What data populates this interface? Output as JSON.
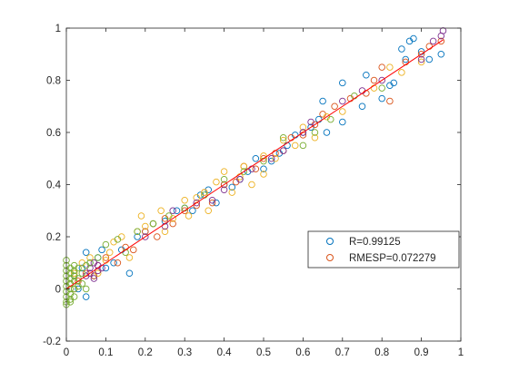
{
  "chart_data": {
    "type": "scatter",
    "title": "",
    "xlabel": "",
    "ylabel": "",
    "xlim": [
      0,
      1
    ],
    "ylim": [
      -0.2,
      1
    ],
    "grid": false,
    "legend_placement": "lower-right",
    "x_ticks": [
      "0",
      "0.1",
      "0.2",
      "0.3",
      "0.4",
      "0.5",
      "0.6",
      "0.7",
      "0.8",
      "0.9",
      "1"
    ],
    "y_ticks": [
      "-0.2",
      "0",
      "0.2",
      "0.4",
      "0.6",
      "0.8",
      "1"
    ],
    "colors": {
      "blue": "#0072BD",
      "orange": "#D95319",
      "yellow": "#EDB120",
      "purple": "#7E2F8E",
      "green": "#77AC30",
      "fit_line": "#FF0000"
    },
    "legend": [
      {
        "label": "R=0.99125",
        "color": "#0072BD"
      },
      {
        "label": "RMESP=0.072279",
        "color": "#D95319"
      }
    ],
    "fit_line": {
      "x": [
        0,
        0.955
      ],
      "y": [
        0,
        0.955
      ]
    },
    "series": [
      {
        "color": "#0072BD",
        "x": [
          0.01,
          0.02,
          0.03,
          0.04,
          0.05,
          0.05,
          0.06,
          0.07,
          0.08,
          0.09,
          0.1,
          0.12,
          0.14,
          0.16,
          0.18,
          0.2,
          0.22,
          0.25,
          0.28,
          0.3,
          0.32,
          0.34,
          0.36,
          0.38,
          0.4,
          0.42,
          0.44,
          0.46,
          0.48,
          0.5,
          0.52,
          0.54,
          0.56,
          0.58,
          0.6,
          0.62,
          0.64,
          0.65,
          0.66,
          0.7,
          0.7,
          0.75,
          0.76,
          0.8,
          0.82,
          0.83,
          0.85,
          0.86,
          0.87,
          0.88,
          0.9,
          0.92,
          0.95
        ],
        "y": [
          0.02,
          0.05,
          0.0,
          0.08,
          0.14,
          -0.03,
          0.1,
          0.05,
          0.12,
          0.15,
          0.08,
          0.1,
          0.15,
          0.06,
          0.2,
          0.22,
          0.25,
          0.26,
          0.3,
          0.31,
          0.3,
          0.36,
          0.38,
          0.33,
          0.4,
          0.39,
          0.42,
          0.45,
          0.5,
          0.46,
          0.49,
          0.52,
          0.55,
          0.59,
          0.6,
          0.62,
          0.65,
          0.72,
          0.6,
          0.64,
          0.79,
          0.7,
          0.82,
          0.73,
          0.78,
          0.79,
          0.92,
          0.88,
          0.95,
          0.96,
          0.91,
          0.88,
          0.9
        ]
      },
      {
        "color": "#D95319",
        "x": [
          0.02,
          0.03,
          0.05,
          0.07,
          0.08,
          0.1,
          0.13,
          0.15,
          0.17,
          0.2,
          0.23,
          0.25,
          0.27,
          0.3,
          0.33,
          0.35,
          0.37,
          0.4,
          0.43,
          0.45,
          0.48,
          0.5,
          0.53,
          0.55,
          0.57,
          0.6,
          0.63,
          0.65,
          0.68,
          0.72,
          0.76,
          0.78,
          0.8,
          0.82,
          0.86,
          0.9,
          0.92,
          0.95
        ],
        "y": [
          0.0,
          0.03,
          0.06,
          0.05,
          0.09,
          0.12,
          0.1,
          0.16,
          0.15,
          0.22,
          0.2,
          0.27,
          0.25,
          0.3,
          0.32,
          0.37,
          0.33,
          0.4,
          0.41,
          0.47,
          0.46,
          0.5,
          0.52,
          0.53,
          0.58,
          0.59,
          0.63,
          0.67,
          0.7,
          0.73,
          0.75,
          0.8,
          0.85,
          0.72,
          0.87,
          0.9,
          0.93,
          0.95
        ]
      },
      {
        "color": "#EDB120",
        "x": [
          0.01,
          0.02,
          0.04,
          0.06,
          0.08,
          0.1,
          0.11,
          0.12,
          0.14,
          0.16,
          0.18,
          0.19,
          0.2,
          0.22,
          0.24,
          0.25,
          0.27,
          0.3,
          0.31,
          0.33,
          0.35,
          0.36,
          0.38,
          0.4,
          0.42,
          0.44,
          0.45,
          0.47,
          0.5,
          0.5,
          0.53,
          0.55,
          0.58,
          0.6,
          0.63,
          0.66,
          0.7,
          0.78,
          0.82,
          0.85,
          0.9
        ],
        "y": [
          0.02,
          0.06,
          0.1,
          0.12,
          0.06,
          0.11,
          0.14,
          0.18,
          0.2,
          0.12,
          0.22,
          0.28,
          0.24,
          0.25,
          0.3,
          0.22,
          0.27,
          0.34,
          0.28,
          0.35,
          0.37,
          0.3,
          0.41,
          0.45,
          0.37,
          0.43,
          0.47,
          0.4,
          0.51,
          0.44,
          0.5,
          0.57,
          0.55,
          0.62,
          0.58,
          0.66,
          0.68,
          0.77,
          0.85,
          0.83,
          0.87
        ]
      },
      {
        "color": "#7E2F8E",
        "x": [
          0.05,
          0.06,
          0.06,
          0.07,
          0.07,
          0.08,
          0.08,
          0.09,
          0.2,
          0.25,
          0.27,
          0.33,
          0.37,
          0.4,
          0.44,
          0.47,
          0.52,
          0.55,
          0.6,
          0.62,
          0.7,
          0.75,
          0.8,
          0.9,
          0.93,
          0.95,
          0.955
        ],
        "y": [
          0.05,
          0.06,
          0.08,
          0.04,
          0.1,
          0.07,
          0.09,
          0.08,
          0.2,
          0.24,
          0.3,
          0.33,
          0.34,
          0.38,
          0.42,
          0.46,
          0.5,
          0.53,
          0.6,
          0.64,
          0.72,
          0.76,
          0.8,
          0.88,
          0.95,
          0.97,
          0.99
        ]
      },
      {
        "color": "#77AC30",
        "x": [
          0.0,
          0.0,
          0.0,
          0.0,
          0.0,
          0.0,
          0.0,
          0.0,
          0.0,
          0.0,
          0.01,
          0.01,
          0.01,
          0.01,
          0.01,
          0.01,
          0.01,
          0.01,
          0.02,
          0.02,
          0.02,
          0.02,
          0.02,
          0.02,
          0.03,
          0.03,
          0.03,
          0.04,
          0.04,
          0.05,
          0.05,
          0.06,
          0.08,
          0.1,
          0.13,
          0.15,
          0.18,
          0.22,
          0.26,
          0.3,
          0.35,
          0.4,
          0.45,
          0.5,
          0.55,
          0.6,
          0.63,
          0.67,
          0.73,
          0.8
        ],
        "y": [
          -0.05,
          -0.03,
          -0.01,
          0.01,
          0.03,
          0.05,
          0.07,
          0.09,
          0.11,
          -0.06,
          -0.04,
          -0.02,
          0.0,
          0.02,
          0.04,
          0.06,
          0.08,
          -0.05,
          -0.03,
          0.0,
          0.03,
          0.05,
          0.07,
          0.09,
          0.01,
          0.04,
          0.08,
          0.02,
          0.06,
          0.0,
          0.09,
          0.1,
          0.12,
          0.17,
          0.19,
          0.14,
          0.22,
          0.25,
          0.28,
          0.31,
          0.36,
          0.42,
          0.45,
          0.49,
          0.58,
          0.55,
          0.6,
          0.65,
          0.74,
          0.77
        ]
      }
    ]
  }
}
